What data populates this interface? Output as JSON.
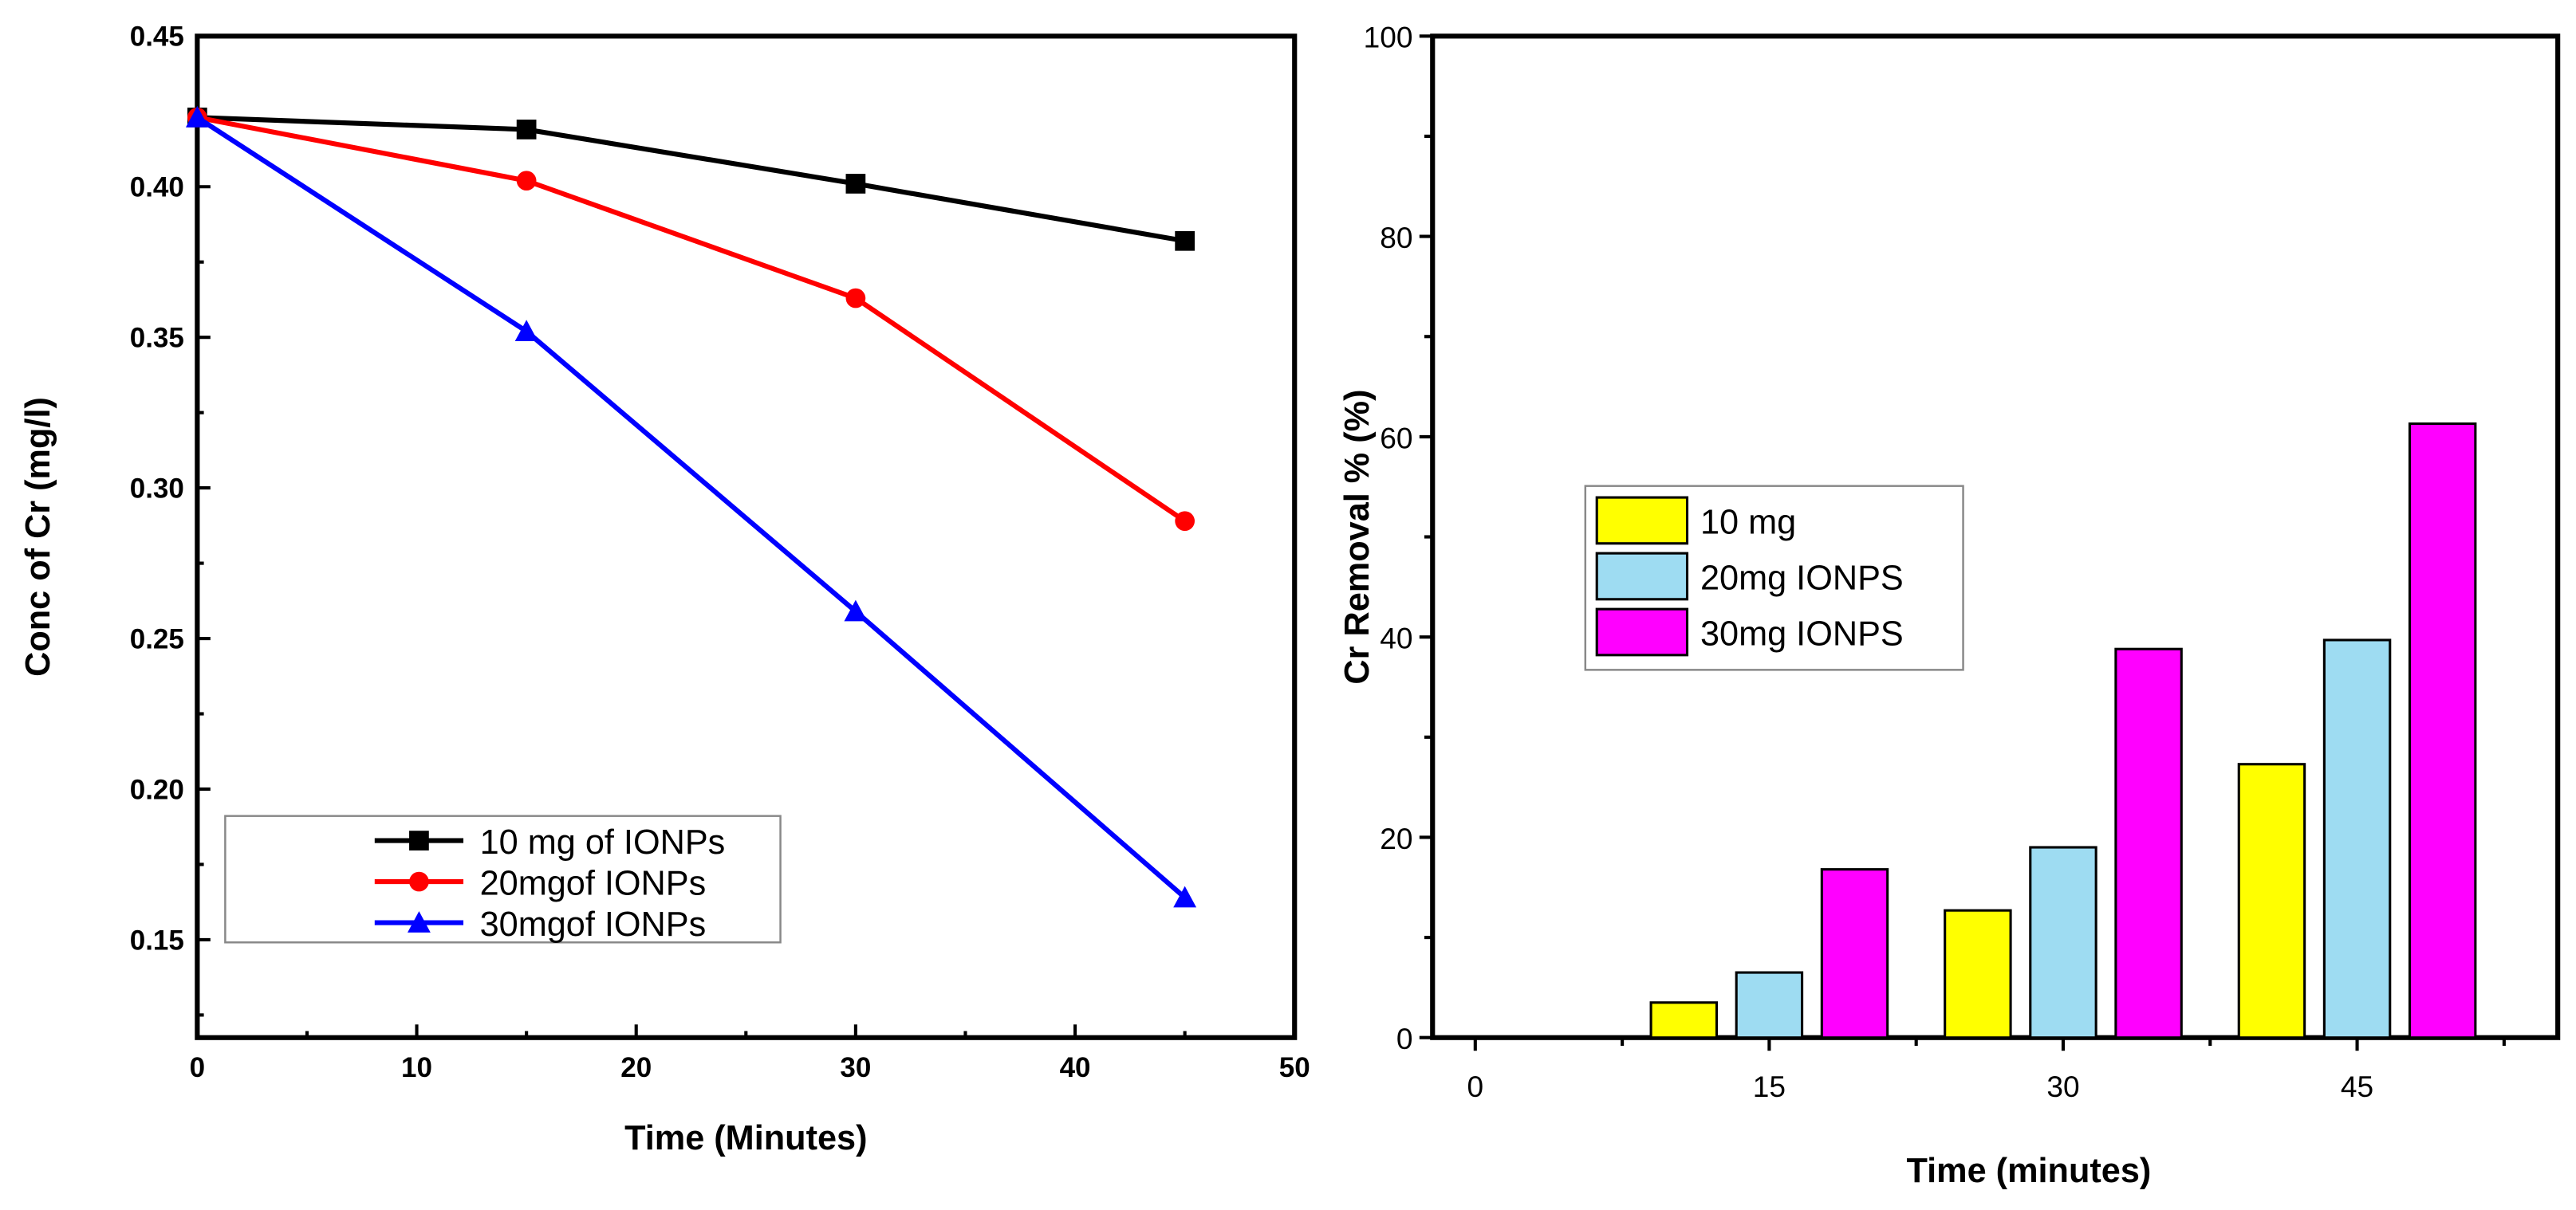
{
  "chart_data": [
    {
      "type": "line",
      "title": "",
      "xlabel": "Time (Minutes)",
      "ylabel": "Conc of Cr (mg/l)",
      "xlim": [
        0,
        50
      ],
      "ylim": [
        0.1175,
        0.45
      ],
      "xticks": [
        "0",
        "10",
        "20",
        "30",
        "40",
        "50"
      ],
      "yticks": [
        "0.15",
        "0.20",
        "0.25",
        "0.30",
        "0.35",
        "0.40",
        "0.45"
      ],
      "x": [
        0,
        15,
        30,
        45
      ],
      "grid": false,
      "legend_position": "bottom-left",
      "series": [
        {
          "name": "10 mg of IONPs",
          "values": [
            0.423,
            0.419,
            0.401,
            0.382
          ],
          "color": "#000000",
          "marker": "square"
        },
        {
          "name": "20mgof IONPs",
          "values": [
            0.423,
            0.402,
            0.363,
            0.289
          ],
          "color": "#ff0000",
          "marker": "circle"
        },
        {
          "name": "30mgof IONPs",
          "values": [
            0.423,
            0.352,
            0.259,
            0.164
          ],
          "color": "#0000ff",
          "marker": "triangle"
        }
      ]
    },
    {
      "type": "bar",
      "title": "",
      "xlabel": "Time (minutes)",
      "ylabel": "Cr Removal % (%)",
      "categories": [
        15,
        30,
        45
      ],
      "xticks": [
        "0",
        "15",
        "30",
        "45"
      ],
      "yticks": [
        "0",
        "20",
        "40",
        "60",
        "80",
        "100"
      ],
      "ylim": [
        0,
        100
      ],
      "grid": false,
      "legend_position": "center-left",
      "series": [
        {
          "name": "10 mg",
          "values": [
            3.5,
            12.7,
            27.3
          ],
          "color": "#ffff00"
        },
        {
          "name": "20mg IONPS",
          "values": [
            6.5,
            19.0,
            39.7
          ],
          "color": "#9edcf2"
        },
        {
          "name": "30mg  IONPS",
          "values": [
            16.8,
            38.8,
            61.3
          ],
          "color": "#ff00ff"
        }
      ]
    }
  ]
}
